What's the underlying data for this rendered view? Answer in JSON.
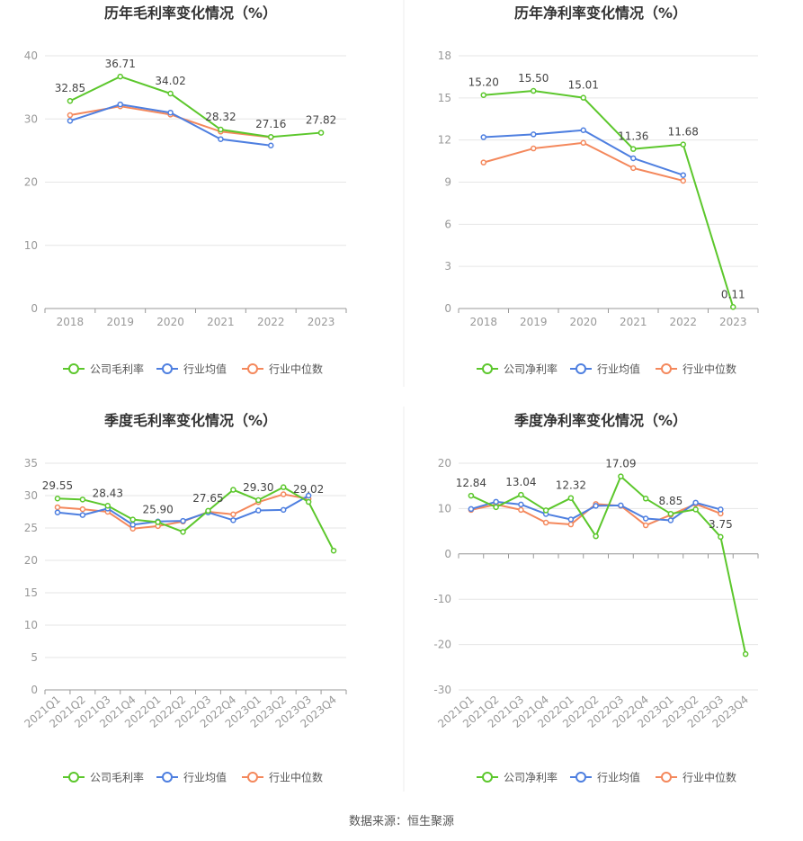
{
  "colors": {
    "company": "#5cc72c",
    "avg": "#4e7fe0",
    "median": "#f4885c",
    "grid": "#e6e6e6",
    "axis": "#999999",
    "tick": "#999999",
    "title": "#333333",
    "label": "#444444"
  },
  "source": "数据来源：恒生聚源",
  "chart_data": [
    {
      "id": "annual-gross",
      "type": "line",
      "title": "历年毛利率变化情况（%）",
      "categories": [
        "2018",
        "2019",
        "2020",
        "2021",
        "2022",
        "2023"
      ],
      "ylim": [
        0,
        40
      ],
      "yticks": [
        0,
        10,
        20,
        30,
        40
      ],
      "rotate_x": false,
      "series": [
        {
          "key": "company",
          "name": "公司毛利率",
          "values": [
            32.85,
            36.71,
            34.02,
            28.32,
            27.16,
            27.82
          ]
        },
        {
          "key": "avg",
          "name": "行业均值",
          "values": [
            29.7,
            32.3,
            31.0,
            26.8,
            25.8,
            null
          ]
        },
        {
          "key": "median",
          "name": "行业中位数",
          "values": [
            30.6,
            32.0,
            30.7,
            28.0,
            27.1,
            null
          ]
        }
      ],
      "labels": [
        {
          "i": 0,
          "text": "32.85"
        },
        {
          "i": 1,
          "text": "36.71"
        },
        {
          "i": 2,
          "text": "34.02"
        },
        {
          "i": 3,
          "text": "28.32"
        },
        {
          "i": 4,
          "text": "27.16"
        },
        {
          "i": 5,
          "text": "27.82"
        }
      ]
    },
    {
      "id": "annual-net",
      "type": "line",
      "title": "历年净利率变化情况（%）",
      "categories": [
        "2018",
        "2019",
        "2020",
        "2021",
        "2022",
        "2023"
      ],
      "ylim": [
        0,
        18
      ],
      "yticks": [
        0,
        3,
        6,
        9,
        12,
        15,
        18
      ],
      "rotate_x": false,
      "series": [
        {
          "key": "company",
          "name": "公司净利率",
          "values": [
            15.2,
            15.5,
            15.01,
            11.36,
            11.68,
            0.11
          ]
        },
        {
          "key": "avg",
          "name": "行业均值",
          "values": [
            12.2,
            12.4,
            12.7,
            10.7,
            9.5,
            null
          ]
        },
        {
          "key": "median",
          "name": "行业中位数",
          "values": [
            10.4,
            11.4,
            11.8,
            10.0,
            9.1,
            null
          ]
        }
      ],
      "labels": [
        {
          "i": 0,
          "text": "15.20"
        },
        {
          "i": 1,
          "text": "15.50"
        },
        {
          "i": 2,
          "text": "15.01"
        },
        {
          "i": 3,
          "text": "11.36"
        },
        {
          "i": 4,
          "text": "11.68"
        },
        {
          "i": 5,
          "text": "0.11"
        }
      ]
    },
    {
      "id": "quarterly-gross",
      "type": "line",
      "title": "季度毛利率变化情况（%）",
      "categories": [
        "2021Q1",
        "2021Q2",
        "2021Q3",
        "2021Q4",
        "2022Q1",
        "2022Q2",
        "2022Q3",
        "2022Q4",
        "2023Q1",
        "2023Q2",
        "2023Q3",
        "2023Q4"
      ],
      "ylim": [
        0,
        35
      ],
      "yticks": [
        0,
        5,
        10,
        15,
        20,
        25,
        30,
        35
      ],
      "rotate_x": true,
      "series": [
        {
          "key": "company",
          "name": "公司毛利率",
          "values": [
            29.55,
            29.4,
            28.43,
            26.3,
            25.9,
            24.4,
            27.65,
            30.9,
            29.3,
            31.3,
            29.02,
            21.5
          ]
        },
        {
          "key": "avg",
          "name": "行业均值",
          "values": [
            27.4,
            27.0,
            28.0,
            25.5,
            26.0,
            26.1,
            27.4,
            26.2,
            27.7,
            27.8,
            30.0,
            null
          ]
        },
        {
          "key": "median",
          "name": "行业中位数",
          "values": [
            28.2,
            27.9,
            27.5,
            24.9,
            25.3,
            26.0,
            27.5,
            27.1,
            29.0,
            30.2,
            29.5,
            null
          ]
        }
      ],
      "labels": [
        {
          "i": 0,
          "text": "29.55"
        },
        {
          "i": 2,
          "text": "28.43"
        },
        {
          "i": 4,
          "text": "25.90"
        },
        {
          "i": 6,
          "text": "27.65"
        },
        {
          "i": 8,
          "text": "29.30"
        },
        {
          "i": 10,
          "text": "29.02"
        }
      ]
    },
    {
      "id": "quarterly-net",
      "type": "line",
      "title": "季度净利率变化情况（%）",
      "categories": [
        "2021Q1",
        "2021Q2",
        "2021Q3",
        "2021Q4",
        "2022Q1",
        "2022Q2",
        "2022Q3",
        "2022Q4",
        "2023Q1",
        "2023Q2",
        "2023Q3",
        "2023Q4"
      ],
      "ylim": [
        -30,
        20
      ],
      "yticks": [
        -30,
        -20,
        -10,
        0,
        10,
        20
      ],
      "rotate_x": true,
      "series": [
        {
          "key": "company",
          "name": "公司净利率",
          "values": [
            12.84,
            10.3,
            13.04,
            9.6,
            12.32,
            3.9,
            17.09,
            12.2,
            8.85,
            9.8,
            3.75,
            -22.1
          ]
        },
        {
          "key": "avg",
          "name": "行业均值",
          "values": [
            9.9,
            11.5,
            10.9,
            8.8,
            7.6,
            10.6,
            10.7,
            7.8,
            7.4,
            11.3,
            9.8,
            null
          ]
        },
        {
          "key": "median",
          "name": "行业中位数",
          "values": [
            9.7,
            10.9,
            9.7,
            6.9,
            6.5,
            11.0,
            10.6,
            6.3,
            8.6,
            11.0,
            8.9,
            null
          ]
        }
      ],
      "labels": [
        {
          "i": 0,
          "text": "12.84"
        },
        {
          "i": 2,
          "text": "13.04"
        },
        {
          "i": 4,
          "text": "12.32"
        },
        {
          "i": 6,
          "text": "17.09"
        },
        {
          "i": 8,
          "text": "8.85"
        },
        {
          "i": 10,
          "text": "3.75"
        }
      ]
    }
  ]
}
